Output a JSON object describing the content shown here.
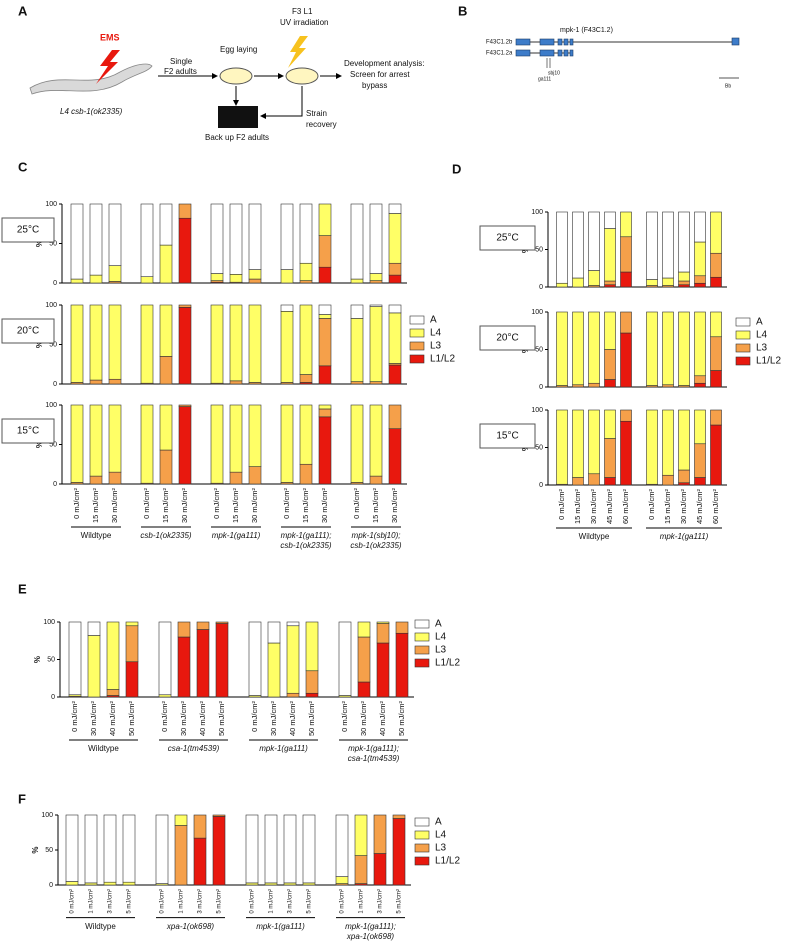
{
  "panel_a": {
    "label": "A",
    "mutagen": "EMS",
    "strain": "L4 csb-1(ok2335)",
    "step_single": [
      "Single",
      "F2 adults"
    ],
    "step_egg": "Egg laying",
    "step_uv": [
      "F3 L1",
      "UV irradiation"
    ],
    "step_screen": [
      "Development analysis:",
      "Screen for arrest",
      "bypass"
    ],
    "step_recovery": [
      "Strain",
      "recovery"
    ],
    "step_backup": "Back up F2 adults"
  },
  "panel_b": {
    "label": "B",
    "gene": "mpk-1 (F43C1.2)",
    "isoforms": [
      "F43C1.2b",
      "F43C1.2a"
    ],
    "alleles": [
      "sbj10",
      "ga111"
    ],
    "region": "Bb"
  },
  "chart_data": [
    {
      "type": "bar",
      "stacked": true,
      "panel": "C",
      "ylabel": "%",
      "ylim": [
        0,
        100
      ],
      "yticks": [
        0,
        50,
        100
      ],
      "rows": [
        "25°C",
        "20°C",
        "15°C"
      ],
      "groups": [
        {
          "label": [
            "Wildtype"
          ],
          "categories": [
            "0 mJ/cm²",
            "15 mJ/cm²",
            "30 mJ/cm²"
          ]
        },
        {
          "label": [
            "csb-1(ok2335)"
          ],
          "categories": [
            "0 mJ/cm²",
            "15 mJ/cm²",
            "30 mJ/cm²"
          ]
        },
        {
          "label": [
            "mpk-1(ga111)"
          ],
          "categories": [
            "0 mJ/cm²",
            "15 mJ/cm²",
            "30 mJ/cm²"
          ]
        },
        {
          "label": [
            "mpk-1(ga111);",
            "csb-1(ok2335)"
          ],
          "categories": [
            "0 mJ/cm²",
            "15 mJ/cm²",
            "30 mJ/cm²"
          ]
        },
        {
          "label": [
            "mpk-1(sbj10);",
            "csb-1(ok2335)"
          ],
          "categories": [
            "0 mJ/cm²",
            "15 mJ/cm²",
            "30 mJ/cm²"
          ]
        }
      ],
      "series": [
        {
          "name": "A",
          "color": "#ffffff",
          "values": [
            [
              95,
              90,
              78,
              92,
              52,
              0,
              88,
              89,
              83,
              83,
              75,
              0,
              95,
              88,
              12
            ],
            [
              0,
              0,
              0,
              0,
              0,
              0,
              0,
              0,
              0,
              8,
              0,
              12,
              17,
              2,
              10
            ],
            [
              0,
              0,
              0,
              0,
              0,
              0,
              0,
              0,
              0,
              0,
              0,
              0,
              0,
              0,
              0
            ]
          ]
        },
        {
          "name": "L4",
          "color": "#ffff66",
          "values": [
            [
              5,
              10,
              20,
              8,
              48,
              0,
              9,
              10,
              12,
              17,
              22,
              40,
              5,
              9,
              63
            ],
            [
              98,
              95,
              94,
              99,
              65,
              0,
              99,
              96,
              98,
              90,
              88,
              5,
              80,
              95,
              64
            ],
            [
              98,
              90,
              85,
              99,
              57,
              0,
              99,
              85,
              78,
              98,
              75,
              5,
              98,
              90,
              0
            ]
          ]
        },
        {
          "name": "L3",
          "color": "#f5a04a",
          "values": [
            [
              0,
              0,
              2,
              0,
              0,
              18,
              2,
              1,
              5,
              0,
              3,
              40,
              0,
              3,
              15
            ],
            [
              2,
              5,
              6,
              1,
              35,
              3,
              1,
              4,
              2,
              2,
              10,
              60,
              3,
              3,
              2
            ],
            [
              2,
              10,
              15,
              1,
              43,
              2,
              1,
              15,
              22,
              2,
              25,
              10,
              2,
              10,
              30
            ]
          ]
        },
        {
          "name": "L1/L2",
          "color": "#e8180e",
          "values": [
            [
              0,
              0,
              0,
              0,
              0,
              82,
              1,
              0,
              0,
              0,
              0,
              20,
              0,
              0,
              10
            ],
            [
              0,
              0,
              0,
              0,
              0,
              97,
              0,
              0,
              0,
              0,
              2,
              23,
              0,
              0,
              24
            ],
            [
              0,
              0,
              0,
              0,
              0,
              98,
              0,
              0,
              0,
              0,
              0,
              85,
              0,
              0,
              70
            ]
          ]
        }
      ]
    },
    {
      "type": "bar",
      "stacked": true,
      "panel": "D",
      "ylabel": "%",
      "ylim": [
        0,
        100
      ],
      "yticks": [
        0,
        50,
        100
      ],
      "rows": [
        "25°C",
        "20°C",
        "15°C"
      ],
      "groups": [
        {
          "label": [
            "Wildtype"
          ],
          "categories": [
            "0 mJ/cm²",
            "15 mJ/cm²",
            "30 mJ/cm²",
            "45 mJ/cm²",
            "60 mJ/cm²"
          ]
        },
        {
          "label": [
            "mpk-1(ga111)"
          ],
          "categories": [
            "0 mJ/cm²",
            "15 mJ/cm²",
            "30 mJ/cm²",
            "45 mJ/cm²",
            "60 mJ/cm²"
          ]
        }
      ],
      "series": [
        {
          "name": "A",
          "color": "#ffffff",
          "values": [
            [
              95,
              88,
              78,
              22,
              0,
              90,
              88,
              80,
              40,
              0
            ],
            [
              0,
              0,
              0,
              0,
              0,
              0,
              0,
              0,
              0,
              0
            ],
            [
              0,
              0,
              0,
              0,
              0,
              0,
              0,
              0,
              0,
              0
            ]
          ]
        },
        {
          "name": "L4",
          "color": "#ffff66",
          "values": [
            [
              5,
              12,
              20,
              70,
              33,
              8,
              10,
              12,
              45,
              55
            ],
            [
              98,
              97,
              95,
              50,
              0,
              98,
              97,
              98,
              85,
              33
            ],
            [
              99,
              90,
              85,
              38,
              0,
              99,
              87,
              80,
              45,
              0
            ]
          ]
        },
        {
          "name": "L3",
          "color": "#f5a04a",
          "values": [
            [
              0,
              0,
              2,
              5,
              47,
              2,
              2,
              5,
              10,
              32
            ],
            [
              2,
              3,
              5,
              40,
              28,
              2,
              3,
              2,
              10,
              45
            ],
            [
              1,
              10,
              15,
              52,
              15,
              1,
              13,
              17,
              45,
              20
            ]
          ]
        },
        {
          "name": "L1/L2",
          "color": "#e8180e",
          "values": [
            [
              0,
              0,
              0,
              3,
              20,
              0,
              0,
              3,
              5,
              13
            ],
            [
              0,
              0,
              0,
              10,
              72,
              0,
              0,
              0,
              5,
              22
            ],
            [
              0,
              0,
              0,
              10,
              85,
              0,
              0,
              3,
              10,
              80
            ]
          ]
        }
      ]
    },
    {
      "type": "bar",
      "stacked": true,
      "panel": "E",
      "ylabel": "%",
      "ylim": [
        0,
        100
      ],
      "yticks": [
        0,
        50,
        100
      ],
      "groups": [
        {
          "label": [
            "Wildtype"
          ],
          "categories": [
            "0 mJ/cm²",
            "30 mJ/cm²",
            "40 mJ/cm²",
            "50 mJ/cm²"
          ]
        },
        {
          "label": [
            "csa-1(tm4539)"
          ],
          "categories": [
            "0 mJ/cm²",
            "30 mJ/cm²",
            "40 mJ/cm²",
            "50 mJ/cm²"
          ]
        },
        {
          "label": [
            "mpk-1(ga111)"
          ],
          "categories": [
            "0 mJ/cm²",
            "30 mJ/cm²",
            "40 mJ/cm²",
            "50 mJ/cm²"
          ]
        },
        {
          "label": [
            "mpk-1(ga111);",
            "csa-1(tm4539)"
          ],
          "categories": [
            "0 mJ/cm²",
            "30 mJ/cm²",
            "40 mJ/cm²",
            "50 mJ/cm²"
          ]
        }
      ],
      "series": [
        {
          "name": "A",
          "color": "#ffffff",
          "values": [
            97,
            18,
            0,
            0,
            97,
            0,
            0,
            0,
            98,
            28,
            5,
            0,
            98,
            0,
            0,
            0
          ]
        },
        {
          "name": "L4",
          "color": "#ffff66",
          "values": [
            2,
            82,
            90,
            5,
            3,
            0,
            0,
            0,
            2,
            72,
            90,
            65,
            2,
            20,
            2,
            0
          ]
        },
        {
          "name": "L3",
          "color": "#f5a04a",
          "values": [
            1,
            0,
            8,
            48,
            0,
            20,
            10,
            2,
            0,
            0,
            5,
            30,
            0,
            60,
            26,
            15
          ]
        },
        {
          "name": "L1/L2",
          "color": "#e8180e",
          "values": [
            0,
            0,
            2,
            47,
            0,
            80,
            90,
            98,
            0,
            0,
            0,
            5,
            0,
            20,
            72,
            85
          ]
        }
      ]
    },
    {
      "type": "bar",
      "stacked": true,
      "panel": "F",
      "ylabel": "%",
      "ylim": [
        0,
        100
      ],
      "yticks": [
        0,
        50,
        100
      ],
      "groups": [
        {
          "label": [
            "Wildtype"
          ],
          "categories": [
            "0 mJ/cm²",
            "1 mJ/cm²",
            "3 mJ/cm²",
            "5 mJ/cm²"
          ]
        },
        {
          "label": [
            "xpa-1(ok698)"
          ],
          "categories": [
            "0 mJ/cm²",
            "1 mJ/cm²",
            "3 mJ/cm²",
            "5 mJ/cm²"
          ]
        },
        {
          "label": [
            "mpk-1(ga111)"
          ],
          "categories": [
            "0 mJ/cm²",
            "1 mJ/cm²",
            "3 mJ/cm²",
            "5 mJ/cm²"
          ]
        },
        {
          "label": [
            "mpk-1(ga111);",
            "xpa-1(ok698)"
          ],
          "categories": [
            "0 mJ/cm²",
            "1 mJ/cm²",
            "3 mJ/cm²",
            "5 mJ/cm²"
          ]
        }
      ],
      "series": [
        {
          "name": "A",
          "color": "#ffffff",
          "values": [
            95,
            97,
            96,
            96,
            98,
            0,
            0,
            0,
            97,
            97,
            97,
            97,
            88,
            0,
            0,
            0
          ]
        },
        {
          "name": "L4",
          "color": "#ffff66",
          "values": [
            5,
            3,
            4,
            4,
            2,
            15,
            0,
            0,
            3,
            3,
            3,
            3,
            10,
            58,
            0,
            0
          ]
        },
        {
          "name": "L3",
          "color": "#f5a04a",
          "values": [
            0,
            0,
            0,
            0,
            0,
            85,
            33,
            2,
            0,
            0,
            0,
            0,
            2,
            40,
            55,
            5
          ]
        },
        {
          "name": "L1/L2",
          "color": "#e8180e",
          "values": [
            0,
            0,
            0,
            0,
            0,
            0,
            67,
            98,
            0,
            0,
            0,
            0,
            0,
            2,
            45,
            95
          ]
        }
      ]
    }
  ]
}
